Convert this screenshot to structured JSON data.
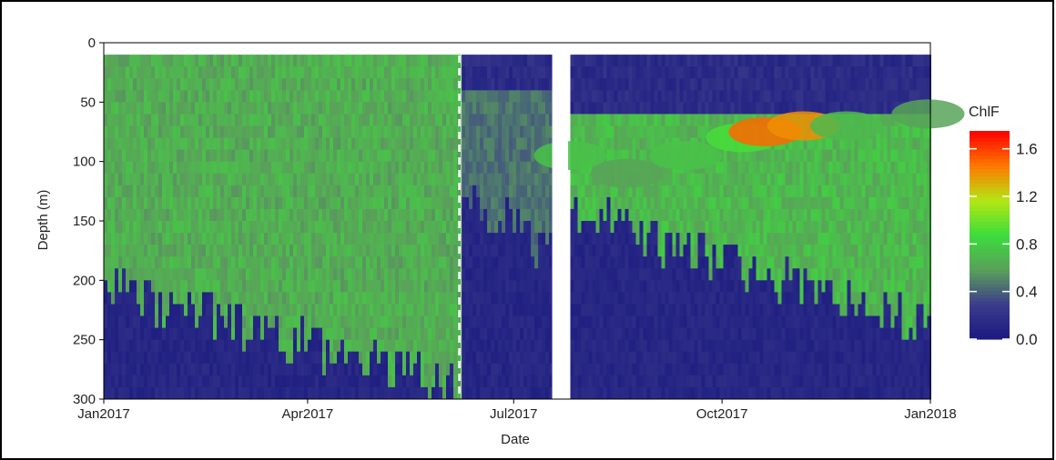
{
  "chart_data": {
    "type": "heatmap",
    "title": "",
    "xlabel": "Date",
    "ylabel": "Depth (m)",
    "x_range": [
      "2017-01-01",
      "2018-01-01"
    ],
    "x_ticks": [
      {
        "date": "2017-01-01",
        "label": "Jan2017"
      },
      {
        "date": "2017-04-01",
        "label": "Apr2017"
      },
      {
        "date": "2017-07-01",
        "label": "Jul2017"
      },
      {
        "date": "2017-10-01",
        "label": "Oct2017"
      },
      {
        "date": "2018-01-01",
        "label": "Jan2018"
      }
    ],
    "y_range": [
      0,
      300
    ],
    "y_reversed": true,
    "y_ticks": [
      0,
      50,
      100,
      150,
      200,
      250,
      300
    ],
    "data_depth_range": [
      10,
      300
    ],
    "colorbar": {
      "title": "ChlF",
      "range": [
        0,
        1.75
      ],
      "ticks": [
        0.0,
        0.4,
        0.8,
        1.2,
        1.6
      ],
      "tick_labels": [
        "0.0",
        "0.4",
        "0.8",
        "1.2",
        "1.6"
      ],
      "colors": [
        "#1a1a80",
        "#3b3b8c",
        "#5aa05a",
        "#3cdc3c",
        "#b4e614",
        "#ff7800",
        "#ff0000"
      ]
    },
    "no_data_gap": [
      "2017-07-18",
      "2017-07-25"
    ],
    "dashed_vline": "2017-06-07",
    "profile_segments": [
      {
        "start": "2017-01-01",
        "end": "2017-06-07",
        "green_top": 10,
        "green_bottom_start": 200,
        "green_bottom_end": 285,
        "value": 0.65
      },
      {
        "start": "2017-06-08",
        "end": "2017-07-17",
        "green_top": 35,
        "green_bottom_start": 120,
        "green_bottom_end": 170,
        "value": 0.45
      },
      {
        "start": "2017-07-26",
        "end": "2017-12-31",
        "green_top": 60,
        "green_bottom_start": 140,
        "green_bottom_end": 230,
        "value": 0.7
      }
    ],
    "chlorophyll_maximum": [
      {
        "date": "2017-07-26",
        "depth": 95,
        "value": 0.75
      },
      {
        "date": "2017-08-20",
        "depth": 110,
        "value": 0.6
      },
      {
        "date": "2017-09-15",
        "depth": 95,
        "value": 0.75
      },
      {
        "date": "2017-10-10",
        "depth": 80,
        "value": 0.9
      },
      {
        "date": "2017-10-20",
        "depth": 75,
        "value": 1.5
      },
      {
        "date": "2017-11-06",
        "depth": 70,
        "value": 1.4
      },
      {
        "date": "2017-11-25",
        "depth": 70,
        "value": 0.7
      },
      {
        "date": "2017-12-31",
        "depth": 60,
        "value": 0.6
      }
    ]
  }
}
